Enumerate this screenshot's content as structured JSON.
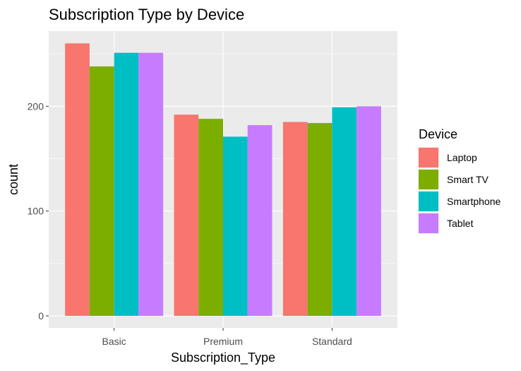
{
  "chart_data": {
    "type": "bar",
    "title": "Subscription Type by Device",
    "xlabel": "Subscription_Type",
    "ylabel": "count",
    "categories": [
      "Basic",
      "Premium",
      "Standard"
    ],
    "series": [
      {
        "name": "Laptop",
        "values": [
          260,
          192,
          185
        ],
        "color": "#F8766D"
      },
      {
        "name": "Smart TV",
        "values": [
          238,
          188,
          184
        ],
        "color": "#7CAE00"
      },
      {
        "name": "Smartphone",
        "values": [
          251,
          171,
          199
        ],
        "color": "#00BFC4"
      },
      {
        "name": "Tablet",
        "values": [
          251,
          182,
          200
        ],
        "color": "#C77CFF"
      }
    ],
    "ylim": [
      0,
      270
    ],
    "yticks": [
      0,
      100,
      200
    ],
    "grid": true,
    "legend": {
      "title": "Device",
      "position": "right"
    },
    "panel_background": "#EBEBEB",
    "grid_color": "#FFFFFF"
  }
}
